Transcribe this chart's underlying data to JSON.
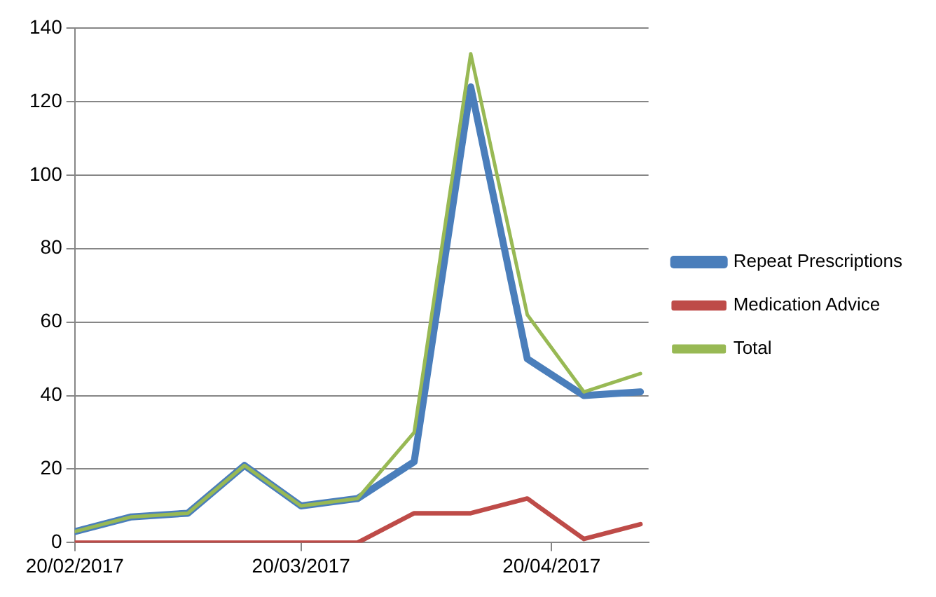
{
  "chart_data": {
    "type": "line",
    "x": [
      "2017-02-20",
      "2017-02-27",
      "2017-03-06",
      "2017-03-13",
      "2017-03-20",
      "2017-03-27",
      "2017-04-03",
      "2017-04-10",
      "2017-04-17",
      "2017-04-24",
      "2017-05-01"
    ],
    "series": [
      {
        "name": "Repeat Prescriptions",
        "color": "#4a7ebb",
        "values": [
          3,
          7,
          8,
          21,
          10,
          12,
          22,
          124,
          50,
          40,
          41
        ]
      },
      {
        "name": "Medication Advice",
        "color": "#be4b48",
        "values": [
          0,
          0,
          0,
          0,
          0,
          0,
          8,
          8,
          12,
          1,
          5
        ]
      },
      {
        "name": "Total",
        "color": "#98b954",
        "values": [
          3,
          7,
          8,
          21,
          10,
          12,
          30,
          133,
          62,
          41,
          46
        ]
      }
    ],
    "xlim": [
      "2017-02-20",
      "2017-05-02"
    ],
    "xticks": [
      {
        "value": "2017-02-20",
        "label": "20/02/2017"
      },
      {
        "value": "2017-03-20",
        "label": "20/03/2017"
      },
      {
        "value": "2017-04-20",
        "label": "20/04/2017"
      }
    ],
    "ylim": [
      0,
      140
    ],
    "yticks": [
      0,
      20,
      40,
      60,
      80,
      100,
      120,
      140
    ],
    "grid": "y",
    "legend": "right",
    "marker": "none",
    "line_style": "solid"
  }
}
